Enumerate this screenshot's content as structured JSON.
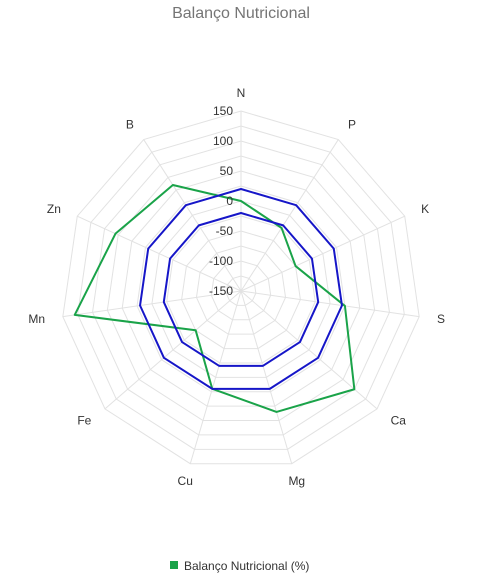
{
  "chart_data": {
    "type": "radar",
    "title": "Balanço Nutricional",
    "categories": [
      "N",
      "P",
      "K",
      "S",
      "Ca",
      "Mg",
      "Cu",
      "Fe",
      "Mn",
      "Zn",
      "B"
    ],
    "rlim": [
      -150,
      150
    ],
    "ticks": [
      150,
      100,
      50,
      0,
      -50,
      -100,
      -150
    ],
    "grid": true,
    "series": [
      {
        "name": "Balanço Nutricional (%)",
        "color": "#1aa349",
        "values": [
          0,
          -25,
          -50,
          25,
          100,
          60,
          20,
          -50,
          130,
          80,
          60
        ],
        "in_legend": true
      },
      {
        "name": "",
        "color": "#1616c8",
        "values": [
          20,
          20,
          20,
          20,
          20,
          20,
          20,
          20,
          20,
          20,
          20
        ],
        "in_legend": false
      },
      {
        "name": "",
        "color": "#1616c8",
        "values": [
          -20,
          -20,
          -20,
          -20,
          -20,
          -20,
          -20,
          -20,
          -20,
          -20,
          -20
        ],
        "in_legend": false
      }
    ],
    "legend": {
      "position": "bottom",
      "label": "Balanço Nutricional (%)",
      "color": "#1aa349"
    }
  }
}
